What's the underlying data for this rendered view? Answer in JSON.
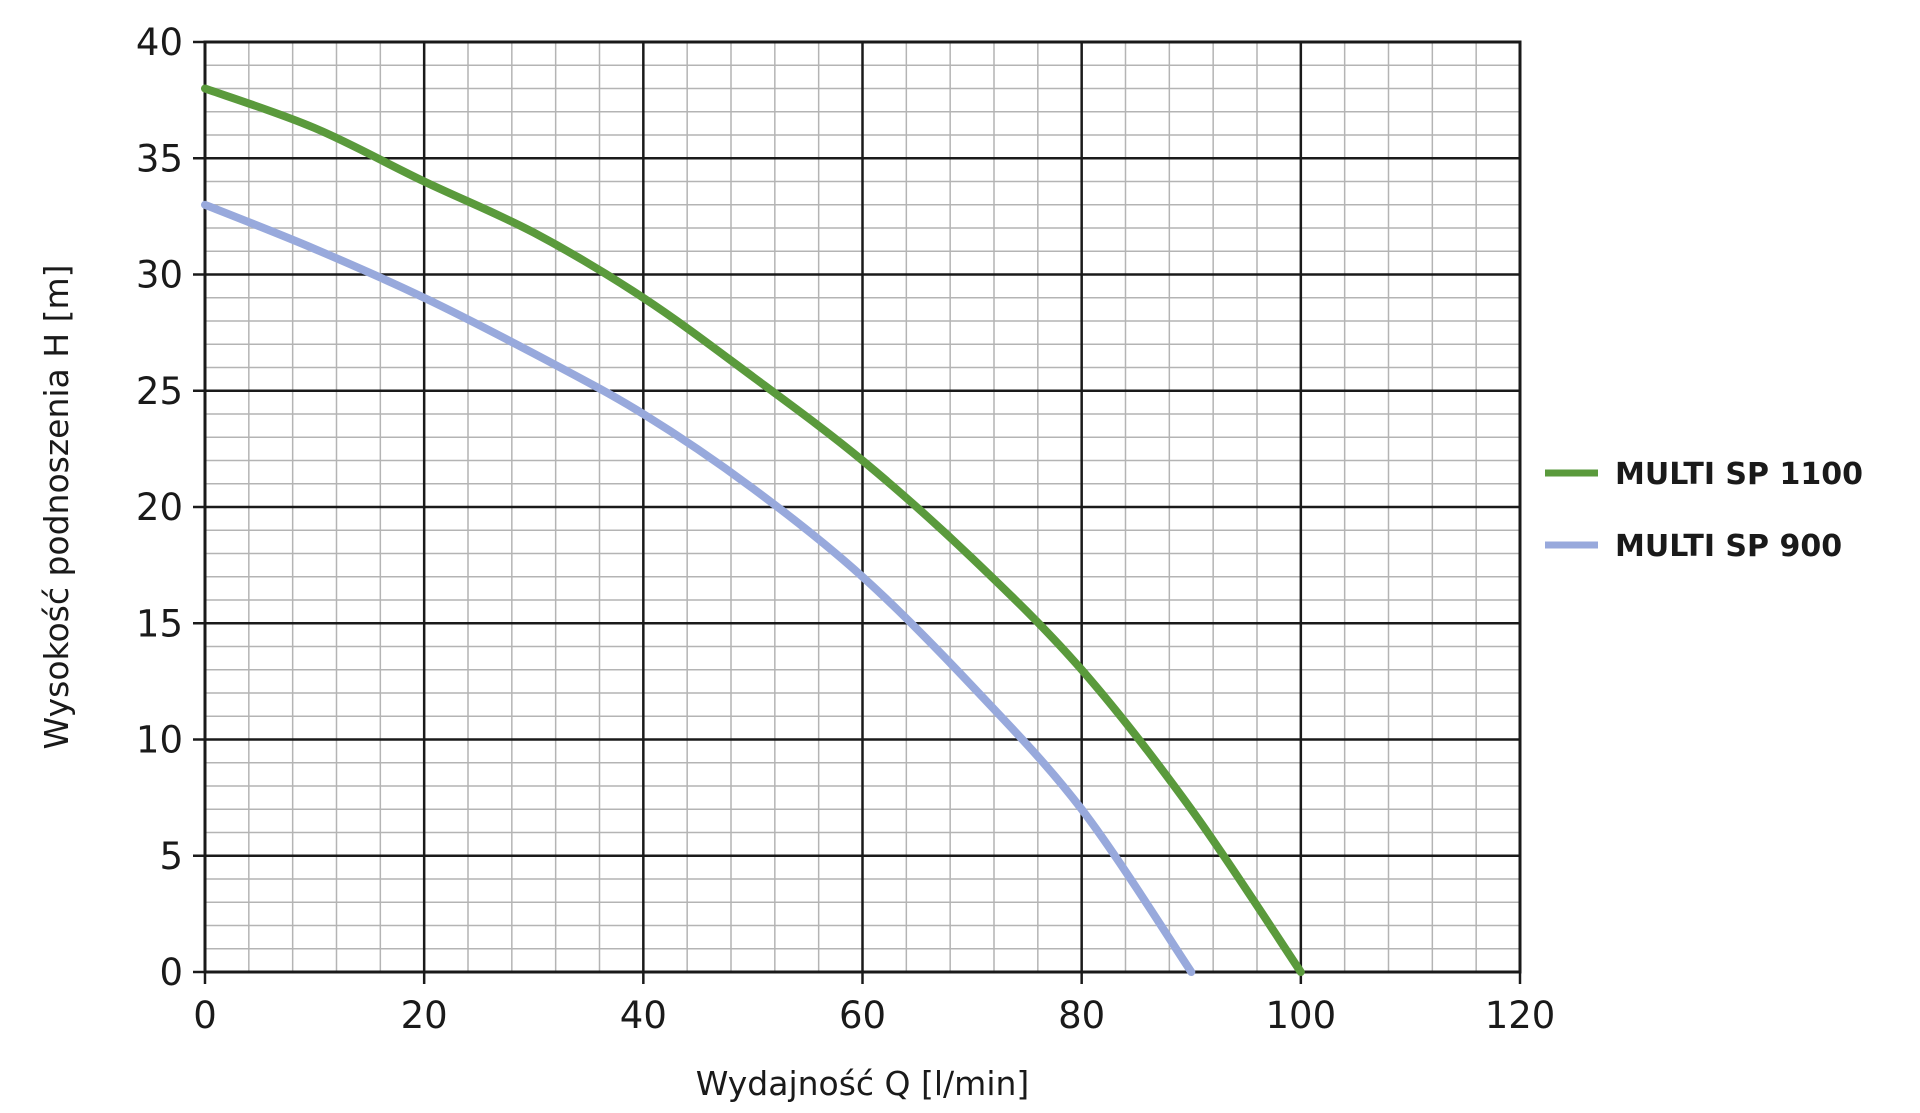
{
  "chart_data": {
    "type": "line",
    "xlabel": "Wydajność Q [l/min]",
    "ylabel": "Wysokość podnoszenia H [m]",
    "xlim": [
      0,
      120
    ],
    "ylim": [
      0,
      40
    ],
    "x_major_step": 20,
    "x_minor_step": 4,
    "y_major_step": 5,
    "y_minor_step": 1,
    "xticks": [
      "0",
      "20",
      "40",
      "60",
      "80",
      "100",
      "120"
    ],
    "yticks": [
      "0",
      "5",
      "10",
      "15",
      "20",
      "25",
      "30",
      "35",
      "40"
    ],
    "grid": true,
    "legend_position": "right",
    "series": [
      {
        "name": "MULTI SP 1100",
        "color": "#5a9a3c",
        "points": [
          [
            0,
            38
          ],
          [
            10,
            36.3
          ],
          [
            20,
            34
          ],
          [
            30,
            31.8
          ],
          [
            40,
            29
          ],
          [
            50,
            25.6
          ],
          [
            60,
            22
          ],
          [
            70,
            17.8
          ],
          [
            80,
            13
          ],
          [
            90,
            7
          ],
          [
            100,
            0
          ]
        ]
      },
      {
        "name": "MULTI SP 900",
        "color": "#98a9dc",
        "points": [
          [
            0,
            33
          ],
          [
            10,
            31.1
          ],
          [
            20,
            29
          ],
          [
            30,
            26.6
          ],
          [
            40,
            24
          ],
          [
            50,
            20.8
          ],
          [
            60,
            17
          ],
          [
            70,
            12.3
          ],
          [
            80,
            7
          ],
          [
            90,
            0
          ]
        ]
      }
    ]
  }
}
